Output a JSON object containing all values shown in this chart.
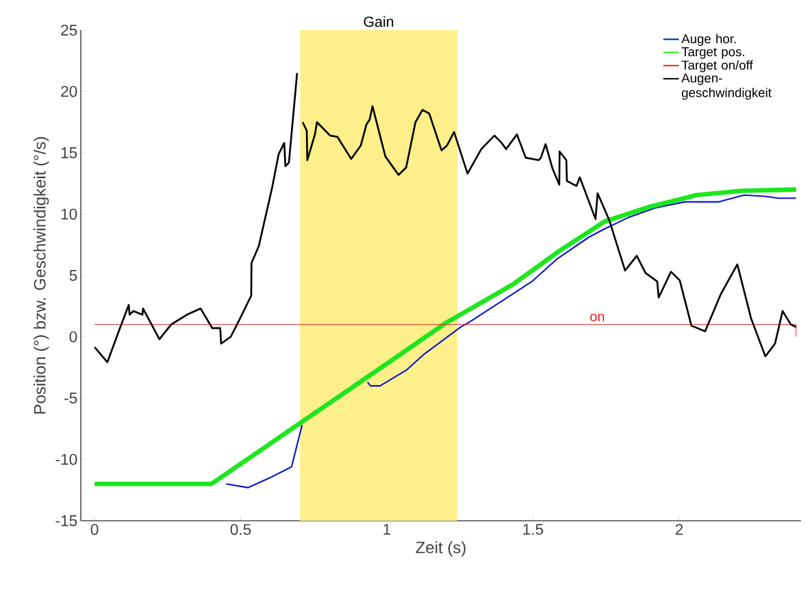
{
  "chart_data": {
    "type": "line",
    "xlabel": "Zeit (s)",
    "ylabel": "Position (°) bzw. Geschwindigkeit (°/s)",
    "xlim": [
      -0.047,
      2.417
    ],
    "ylim": [
      -15,
      25
    ],
    "xticks": [
      0,
      0.5,
      1,
      1.5,
      2
    ],
    "yticks": [
      -15,
      -10,
      -5,
      0,
      5,
      10,
      15,
      20,
      25
    ],
    "grid": false,
    "legend": "top right",
    "bands": [
      {
        "axis": "x",
        "from": 0.703,
        "to": 1.241,
        "label": "Gain",
        "color": "#fdef8a"
      }
    ],
    "annotations": [
      {
        "text": "on",
        "x": 1.72,
        "y": 1
      }
    ],
    "series": [
      {
        "name": "Auge hor.",
        "color": "#0a14d2",
        "x": [
          0.45,
          0.525,
          0.6,
          0.674,
          0.71,
          0.8,
          0.934,
          0.944,
          0.977,
          1.068,
          1.126,
          1.253,
          1.276,
          1.496,
          1.58,
          1.69,
          1.745,
          1.824,
          1.918,
          2.019,
          2.136,
          2.222,
          2.293,
          2.34,
          2.4
        ],
        "values": [
          -12,
          -12.3,
          -11.5,
          -10.6,
          -7.2,
          null,
          -3.7,
          -4.0,
          -4.0,
          -2.7,
          -1.45,
          0.8,
          1.1,
          4.5,
          6.3,
          8.1,
          8.8,
          9.7,
          10.5,
          11.0,
          11.0,
          11.55,
          11.45,
          11.3,
          11.3
        ]
      },
      {
        "name": "Target pos.",
        "color": "#1ee61e",
        "x": [
          0,
          0.4,
          0.7,
          1.0,
          1.2,
          1.433,
          1.59,
          1.745,
          1.9,
          2.06,
          2.213,
          2.4
        ],
        "values": [
          -12,
          -12,
          -7.1,
          -2.2,
          1.1,
          4.3,
          7.0,
          9.4,
          10.6,
          11.55,
          11.9,
          12.0
        ]
      },
      {
        "name": "Target on/off",
        "color": "#e61e1e",
        "x": [
          0,
          2.4,
          2.4
        ],
        "values": [
          1,
          1,
          0
        ]
      },
      {
        "name": "Augen-geschwindigkeit",
        "color": "#000000",
        "x": [
          0,
          0.044,
          0.082,
          0.117,
          0.12,
          0.133,
          0.164,
          0.166,
          0.222,
          0.262,
          0.316,
          0.363,
          0.403,
          0.43,
          0.433,
          0.466,
          0.496,
          0.536,
          0.537,
          0.562,
          0.607,
          0.63,
          0.649,
          0.653,
          0.665,
          0.693,
          0.7,
          0.712,
          0.726,
          0.728,
          0.754,
          0.761,
          0.806,
          0.831,
          0.878,
          0.911,
          0.93,
          0.941,
          0.951,
          0.981,
          0.995,
          1.04,
          1.066,
          1.098,
          1.122,
          1.145,
          1.187,
          1.206,
          1.23,
          1.276,
          1.323,
          1.368,
          1.393,
          1.408,
          1.445,
          1.475,
          1.52,
          1.527,
          1.543,
          1.567,
          1.59,
          1.591,
          1.614,
          1.616,
          1.64,
          1.649,
          1.66,
          1.714,
          1.721,
          1.761,
          1.815,
          1.855,
          1.885,
          1.925,
          1.93,
          1.972,
          2.002,
          2.042,
          2.089,
          2.143,
          2.199,
          2.246,
          2.295,
          2.328,
          2.354,
          2.382,
          2.4
        ],
        "values": [
          -0.84,
          -2.07,
          0.39,
          2.6,
          1.8,
          2.1,
          1.8,
          2.3,
          -0.2,
          1.0,
          1.8,
          2.3,
          0.7,
          0.7,
          -0.56,
          0,
          1.4,
          3.35,
          6.0,
          7.4,
          12.1,
          14.9,
          15.8,
          13.9,
          14.2,
          21.5,
          null,
          17.5,
          16.8,
          14.4,
          16.5,
          17.5,
          16.4,
          16.3,
          14.5,
          15.6,
          17.3,
          17.7,
          18.8,
          16.0,
          14.7,
          13.2,
          13.8,
          17.5,
          18.5,
          18.2,
          15.2,
          15.6,
          16.7,
          13.3,
          15.3,
          16.4,
          15.8,
          15.3,
          16.5,
          14.6,
          14.4,
          14.6,
          15.7,
          13.7,
          12.4,
          15.1,
          14.4,
          12.7,
          12.4,
          12.3,
          13.0,
          9.6,
          11.7,
          9.5,
          5.4,
          6.6,
          5.2,
          4.5,
          3.2,
          5.3,
          4.6,
          0.9,
          0.45,
          3.5,
          5.9,
          1.5,
          -1.6,
          -0.56,
          2.1,
          1.0,
          0.8
        ]
      }
    ]
  }
}
